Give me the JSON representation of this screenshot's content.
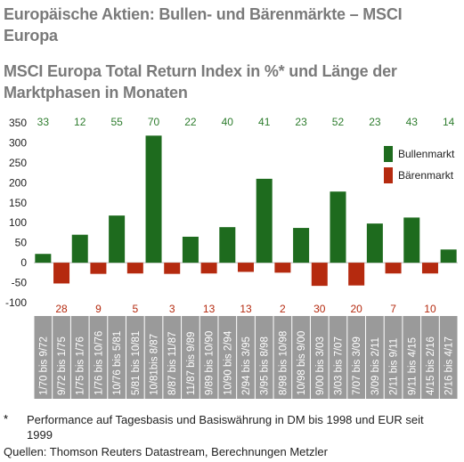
{
  "header": {
    "title": "Europäische Aktien: Bullen- und Bärenmärkte – MSCI Europa",
    "subtitle": "MSCI Europa Total Return Index in %* und Länge der Marktphasen in Monaten"
  },
  "footnote": {
    "star": "*",
    "text": "Performance auf Tagesbasis und Basiswährung in DM bis 1998 und EUR seit 1999",
    "source": "Quellen: Thomson Reuters Datastream, Berechnungen Metzler"
  },
  "colors": {
    "bull": "#1e6b1e",
    "bear": "#b52a0f",
    "bull_label": "#2e7d2e",
    "bear_label": "#b52a0f"
  },
  "chart_data": {
    "type": "bar",
    "ylim": [
      -100,
      350
    ],
    "yticks": [
      -100,
      -50,
      0,
      50,
      100,
      150,
      200,
      250,
      300,
      350
    ],
    "ytick_labels": [
      "-100",
      "-50",
      "0",
      "50",
      "100",
      "150",
      "200",
      "250",
      "300",
      "350"
    ],
    "grid": false,
    "legend": {
      "position": "right",
      "entries": [
        "Bullenmarkt",
        "Bärenmarkt"
      ]
    },
    "categories": [
      "1/70 bis 9/72",
      "9/72 bis 1/75",
      "1/75 bis 1/76",
      "1/76 bis 10/76",
      "10/76 bis 5/81",
      "5/81 bis 10/81",
      "10/81bis 8/87",
      "8/87 bis 11/87",
      "11/87 bis 9/89",
      "9/89 bis 10/90",
      "10/90 bis 2/94",
      "2/94 bis 3/95",
      "3/95 bis 8/98",
      "8/98 bis 10/98",
      "10/98 bis 9/00",
      "9/00 bis 3/03",
      "3/03 bis 7/07",
      "7/07 bis 3/09",
      "3/09 bis 2/11",
      "2/11 bis 9/11",
      "9/11 bis 4/15",
      "4/15 bis 2/16",
      "2/16 bis 4/17"
    ],
    "phases": [
      "bull",
      "bear",
      "bull",
      "bear",
      "bull",
      "bear",
      "bull",
      "bear",
      "bull",
      "bear",
      "bull",
      "bear",
      "bull",
      "bear",
      "bull",
      "bear",
      "bull",
      "bear",
      "bull",
      "bear",
      "bull",
      "bear",
      "bull"
    ],
    "series": [
      {
        "name": "Bullenmarkt",
        "values": [
          22,
          null,
          70,
          null,
          118,
          null,
          318,
          null,
          65,
          null,
          89,
          null,
          210,
          null,
          87,
          null,
          178,
          null,
          98,
          null,
          113,
          null,
          33
        ]
      },
      {
        "name": "Bärenmarkt",
        "values": [
          null,
          -52,
          null,
          -28,
          null,
          -27,
          null,
          -28,
          null,
          -27,
          null,
          -23,
          null,
          -25,
          null,
          -58,
          null,
          -57,
          null,
          -27,
          null,
          -27,
          null
        ]
      }
    ],
    "bull_durations": [
      "33",
      "12",
      "55",
      "70",
      "22",
      "40",
      "41",
      "23",
      "52",
      "23",
      "43",
      "14"
    ],
    "bear_durations": [
      "28",
      "9",
      "5",
      "3",
      "13",
      "13",
      "2",
      "30",
      "20",
      "7",
      "10"
    ]
  }
}
